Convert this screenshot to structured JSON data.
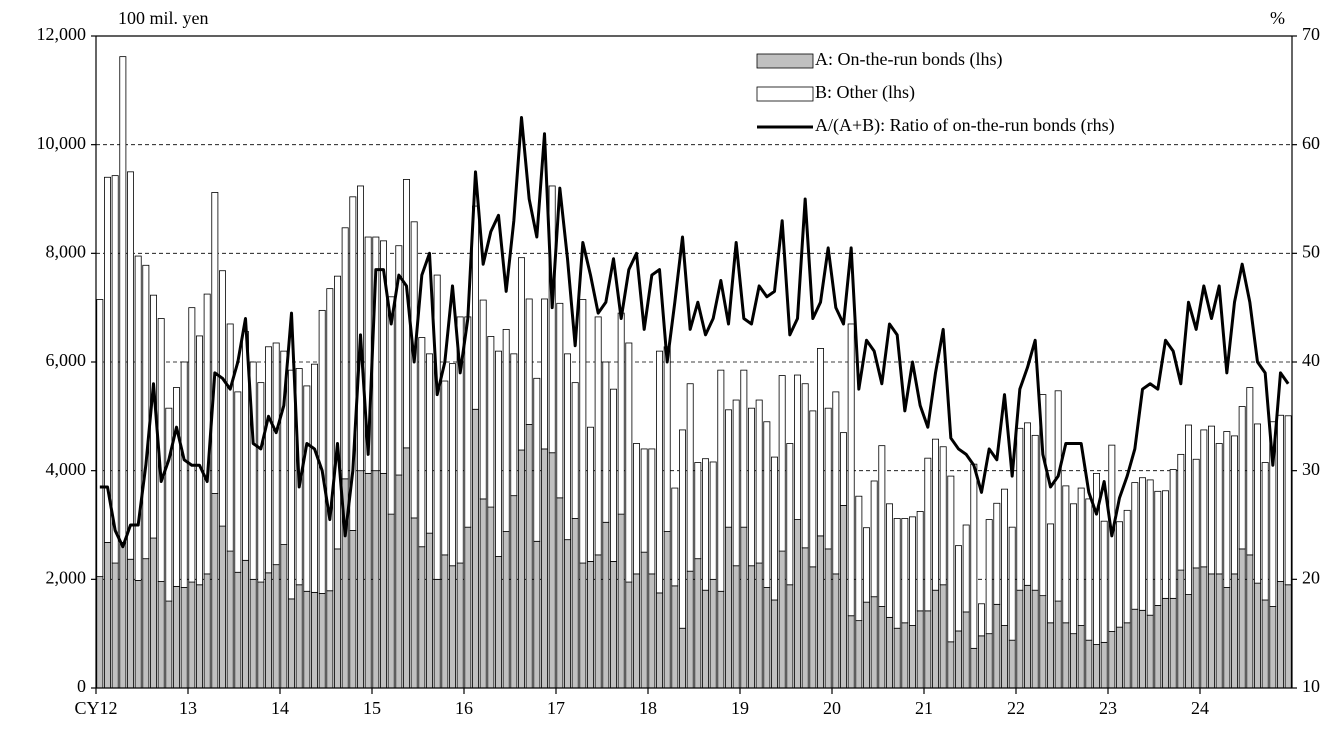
{
  "chart_data": {
    "type": "bar-line",
    "y_unit_label": "100 mil. yen",
    "y2_unit_label": "%",
    "categories": [
      "CY12",
      null,
      null,
      null,
      null,
      null,
      null,
      null,
      null,
      null,
      null,
      null,
      "13",
      null,
      null,
      null,
      null,
      null,
      null,
      null,
      null,
      null,
      null,
      null,
      "14",
      null,
      null,
      null,
      null,
      null,
      null,
      null,
      null,
      null,
      null,
      null,
      "15",
      null,
      null,
      null,
      null,
      null,
      null,
      null,
      null,
      null,
      null,
      null,
      "16",
      null,
      null,
      null,
      null,
      null,
      null,
      null,
      null,
      null,
      null,
      null,
      "17",
      null,
      null,
      null,
      null,
      null,
      null,
      null,
      null,
      null,
      null,
      null,
      "18",
      null,
      null,
      null,
      null,
      null,
      null,
      null,
      null,
      null,
      null,
      null,
      "19",
      null,
      null,
      null,
      null,
      null,
      null,
      null,
      null,
      null,
      null,
      null,
      "20",
      null,
      null,
      null,
      null,
      null,
      null,
      null,
      null,
      null,
      null,
      null,
      "21",
      null,
      null,
      null,
      null,
      null,
      null,
      null,
      null,
      null,
      null,
      null,
      "22",
      null,
      null,
      null,
      null,
      null,
      null,
      null,
      null,
      null,
      null,
      null,
      "23",
      null,
      null,
      null,
      null,
      null,
      null,
      null,
      null,
      null,
      null,
      null,
      "24",
      null,
      null,
      null,
      null,
      null,
      null,
      null,
      null,
      null,
      null,
      null
    ],
    "ylim": [
      0,
      12000
    ],
    "yticks": [
      0,
      {
        "value": 2000,
        "label": "2,000"
      },
      {
        "value": 4000,
        "label": "4,000"
      },
      {
        "value": 6000,
        "label": "6,000"
      },
      {
        "value": 8000,
        "label": "8,000"
      },
      {
        "value": 10000,
        "label": "10,000"
      },
      {
        "value": 12000,
        "label": "12,000"
      }
    ],
    "y2lim": [
      10,
      70
    ],
    "y2ticks": [
      10,
      20,
      30,
      40,
      50,
      60,
      70
    ],
    "grid": true,
    "legend": "upper right",
    "series": [
      {
        "name": "A: On-the-run bonds (lhs)",
        "color": "#c0c0c0",
        "kind": "bar",
        "values": [
          2050,
          2680,
          2300,
          2680,
          2370,
          1980,
          2380,
          2760,
          1960,
          1600,
          1870,
          1850,
          1950,
          1900,
          2100,
          3580,
          2980,
          2520,
          2130,
          2350,
          2000,
          1950,
          2120,
          2270,
          2640,
          1640,
          1900,
          1780,
          1760,
          1740,
          1790,
          2560,
          3850,
          2900,
          4000,
          3950,
          4000,
          3950,
          3200,
          3920,
          4420,
          3130,
          2600,
          2850,
          2000,
          2450,
          2250,
          2300,
          2960,
          5130,
          3480,
          3330,
          2420,
          2880,
          3540,
          4380,
          4850,
          2700,
          4400,
          4330,
          3500,
          2730,
          3120,
          2300,
          2330,
          2450,
          3050,
          2330,
          3200,
          1950,
          2100,
          2500,
          2100,
          1750,
          2880,
          1880,
          1100,
          2150,
          2380,
          1800,
          2000,
          1780,
          2960,
          2250,
          2960,
          2250,
          2300,
          1850,
          1620,
          2520,
          1900,
          3100,
          2580,
          2230,
          2800,
          2560,
          2100,
          3360,
          1330,
          1240,
          1580,
          1680,
          1500,
          1300,
          1100,
          1200,
          1150,
          1420,
          1420,
          1800,
          1900,
          850,
          1050,
          1400,
          730,
          960,
          1000,
          1540,
          1150,
          880,
          1800,
          1890,
          1800,
          1700,
          1200,
          1600,
          1200,
          1000,
          1150,
          880,
          800,
          840,
          1040,
          1120,
          1200,
          1450,
          1430,
          1340,
          1520,
          1650,
          1650,
          2170,
          1720,
          2210,
          2230,
          2100,
          2100,
          1850,
          2100,
          2560,
          2450,
          1930,
          1620,
          1500,
          1960,
          1900
        ]
      },
      {
        "name": "B: Other (lhs)",
        "color": "#ffffff",
        "kind": "bar",
        "values": [
          5100,
          6720,
          7130,
          8940,
          7130,
          5970,
          5400,
          4470,
          4840,
          3550,
          3660,
          4150,
          5050,
          4580,
          5150,
          5540,
          4700,
          4180,
          3320,
          4210,
          4000,
          3670,
          4160,
          4080,
          3560,
          4210,
          3980,
          3780,
          4200,
          5210,
          5560,
          5020,
          4620,
          6140,
          5240,
          4350,
          4300,
          4280,
          4000,
          4220,
          4940,
          5450,
          3850,
          3300,
          5600,
          3200,
          3720,
          4530,
          3870,
          3740,
          3660,
          3140,
          3780,
          3720,
          2610,
          3540,
          2310,
          3000,
          2760,
          4910,
          3580,
          3420,
          2500,
          4850,
          2470,
          4380,
          2950,
          3170,
          3700,
          4400,
          2400,
          1900,
          2300,
          4450,
          3400,
          1800,
          3650,
          3450,
          1770,
          2420,
          2160,
          4070,
          2160,
          3050,
          2890,
          2900,
          3000,
          3050,
          2630,
          3230,
          2600,
          2660,
          3020,
          2870,
          3450,
          2590,
          3350,
          1340,
          5370,
          2290,
          1370,
          2130,
          2960,
          2090,
          2020,
          1920,
          2000,
          1830,
          2810,
          2780,
          2540,
          3050,
          1570,
          1600,
          3390,
          590,
          2100,
          1860,
          2510,
          2080,
          2980,
          2990,
          2850,
          3700,
          1820,
          3870,
          2520,
          2390,
          2530,
          2600,
          3150,
          2230,
          3430,
          1940,
          2070,
          2330,
          2440,
          2490,
          2100,
          1980,
          2370,
          2130,
          3120,
          2000,
          2520,
          2720,
          2400,
          2870,
          2540,
          2620,
          3080,
          2930,
          2530,
          3400,
          3060,
          3110
        ]
      },
      {
        "name": "A/(A+B): Ratio of on-the-run bonds (rhs)",
        "color": "#000000",
        "kind": "line",
        "axis": "y2",
        "values": [
          28.5,
          28.5,
          24.5,
          23,
          25,
          25,
          30.5,
          38,
          29,
          31,
          34,
          31,
          30.5,
          30.5,
          29,
          39,
          38.5,
          37.5,
          40,
          44,
          32.5,
          32,
          35,
          33.5,
          36,
          44.5,
          28.5,
          32.5,
          32,
          30,
          25.5,
          32.5,
          24,
          30,
          42.5,
          31.5,
          48.5,
          48.5,
          43.5,
          48,
          47,
          40,
          48,
          50,
          37,
          40,
          47,
          39,
          44,
          57.5,
          49,
          52,
          53.5,
          46.5,
          53,
          62.5,
          55,
          51.5,
          61,
          45,
          56,
          49.5,
          41.5,
          51,
          48,
          44.5,
          45.5,
          49.5,
          44,
          48.5,
          50,
          43,
          48,
          48.5,
          40,
          45.5,
          51.5,
          43,
          45.5,
          42.5,
          44,
          47.5,
          43.5,
          51,
          44,
          43.5,
          47,
          46,
          46.5,
          53,
          42.5,
          44,
          55,
          44,
          45.5,
          50.5,
          45,
          43.5,
          50.5,
          37.5,
          42,
          41,
          38,
          43.5,
          42.5,
          35.5,
          40,
          36,
          34,
          39,
          43,
          33,
          32,
          31.5,
          30.5,
          28,
          32,
          31,
          37,
          29.5,
          37.5,
          39.5,
          42,
          31.5,
          28.5,
          29.5,
          32.5,
          32.5,
          32.5,
          28,
          26,
          29,
          24,
          27.5,
          29.5,
          32,
          37.5,
          38,
          37.5,
          42,
          41,
          38,
          45.5,
          43,
          47,
          44,
          47,
          39,
          45.5,
          49,
          45.5,
          40,
          39,
          30.5,
          39,
          38
        ]
      }
    ]
  }
}
